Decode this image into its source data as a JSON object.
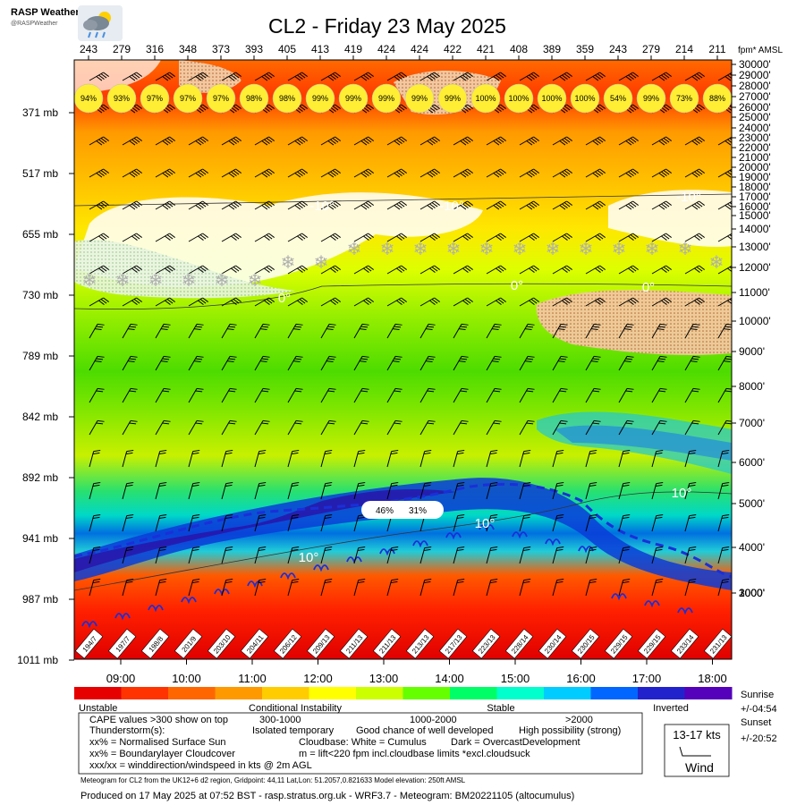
{
  "header": {
    "logo_title": "RASP Weather",
    "logo_handle": "@RASPWeather",
    "title": "CL2 - Friday 23 May 2025"
  },
  "chart_data": {
    "type": "heatmap",
    "title": "CL2 - Friday 23 May 2025",
    "x_times": [
      "09:00",
      "10:00",
      "11:00",
      "12:00",
      "13:00",
      "14:00",
      "15:00",
      "16:00",
      "17:00",
      "18:00"
    ],
    "top_values": [
      243,
      279,
      316,
      348,
      373,
      393,
      405,
      413,
      419,
      424,
      424,
      422,
      421,
      408,
      389,
      359,
      243,
      279,
      214,
      211
    ],
    "top_unit": "fpm* AMSL",
    "cloud_pct": [
      "94%",
      "93%",
      "97%",
      "97%",
      "97%",
      "98%",
      "98%",
      "99%",
      "99%",
      "99%",
      "99%",
      "99%",
      "100%",
      "100%",
      "100%",
      "100%",
      "54%",
      "99%",
      "73%",
      "88%"
    ],
    "pressure_levels": [
      "371 mb",
      "517 mb",
      "655 mb",
      "730 mb",
      "789 mb",
      "842 mb",
      "892 mb",
      "941 mb",
      "987 mb",
      "1011 mb"
    ],
    "altitudes": [
      "30000'",
      "29000'",
      "28000'",
      "27000'",
      "26000'",
      "25000'",
      "24000'",
      "23000'",
      "22000'",
      "21000'",
      "20000'",
      "19000'",
      "18000'",
      "17000'",
      "16000'",
      "15000'",
      "14000'",
      "13000'",
      "12000'",
      "11000'",
      "10000'",
      "9000'",
      "8000'",
      "7000'",
      "6000'",
      "5000'",
      "4000'",
      "3000'",
      "2000'",
      "1000'"
    ],
    "surface_wind": [
      "194/7",
      "197/7",
      "198/8",
      "201/9",
      "203/10",
      "204/11",
      "206/12",
      "209/13",
      "211/13",
      "211/13",
      "213/13",
      "217/13",
      "223/13",
      "228/14",
      "230/14",
      "230/15",
      "229/15",
      "229/15",
      "233/14",
      "231/13"
    ],
    "isotherm_labels": [
      "-10°",
      "-10°",
      "-10°",
      "0°",
      "0°",
      "0°",
      "10°",
      "10°",
      "10°"
    ],
    "boundary_cloud": [
      "46%",
      "31%"
    ],
    "colorbar": {
      "colors": [
        "#e60000",
        "#ff3300",
        "#ff6600",
        "#ff9900",
        "#ffcc00",
        "#ffff00",
        "#ccff00",
        "#66ff00",
        "#00ff66",
        "#00ffcc",
        "#00ccff",
        "#0066ff",
        "#2222cc",
        "#5500bb"
      ],
      "labels": [
        "Unstable",
        "Conditional Instability",
        "Stable",
        "Inverted"
      ]
    }
  },
  "right_info": {
    "sunrise_label": "Sunrise",
    "sunrise_value": "+/-04:54",
    "sunset_label": "Sunset",
    "sunset_value": "+/-20:52"
  },
  "legend": {
    "cape": "CAPE values >300 show on top",
    "cape_1": "300-1000",
    "cape_2": "1000-2000",
    "cape_3": ">2000",
    "thunder": "Thunderstorm(s):",
    "thunder_1": "Isolated temporary",
    "thunder_2": "Good chance of well developed",
    "thunder_3": "High possibility (strong)",
    "sun": "xx% = Normalised Surface Sun",
    "cloudbase": "Cloudbase: White = Cumulus",
    "dark": "Dark = OvercastDevelopment",
    "blcloud": "xx% = Boundarylayer Cloudcover",
    "lift": "m = lift<220 fpm incl.cloudbase limits *excl.cloudsuck",
    "wind": "xxx/xx = winddirection/windspeed in kts @ 2m AGL",
    "wind_box_speed": "13-17 kts",
    "wind_box_label": "Wind"
  },
  "footer": {
    "model_line": "Meteogram for CL2 from the UK12+6 d2 region, Gridpoint: 44,11 Lat,Lon: 51.2057,0.821633 Model elevation: 250ft AMSL",
    "produced_line": "Produced on 17 May 2025 at 07:52 BST - rasp.stratus.org.uk - WRF3.7 - Meteogram: BM20221105 (altocumulus)"
  }
}
